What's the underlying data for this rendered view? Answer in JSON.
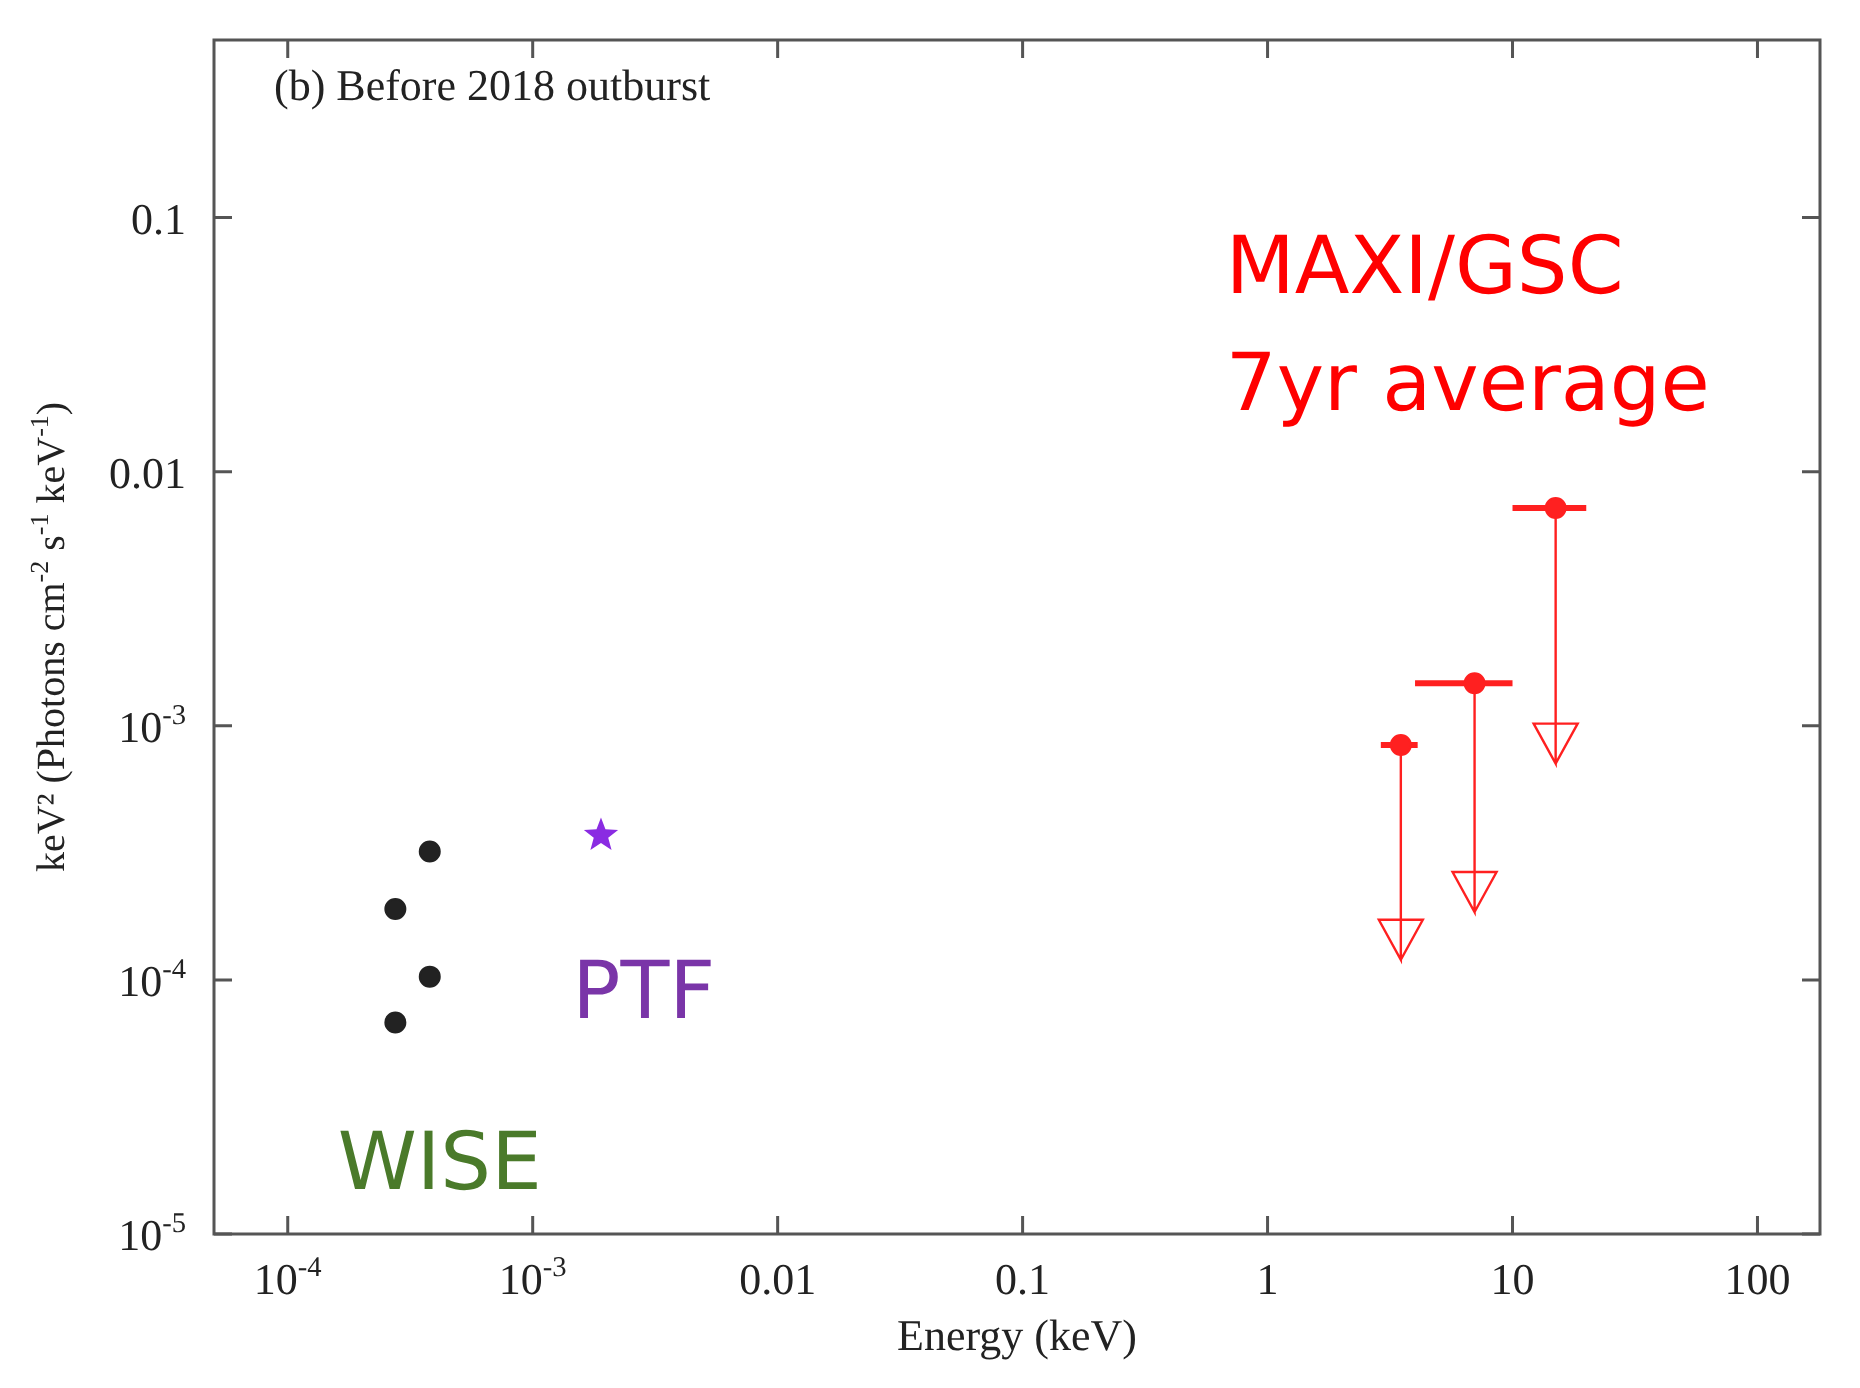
{
  "chart_data": {
    "type": "scatter",
    "title": "(b) Before 2018 outburst",
    "xlabel": "Energy (keV)",
    "ylabel": "keV² (Photons cm$^{-2}$ s$^{-1}$ keV$^{-1}$)",
    "log": "xy",
    "grid": false,
    "legend": false,
    "xlim": [
      5e-05,
      180
    ],
    "ylim": [
      1e-05,
      0.5
    ],
    "xticks": [
      {
        "value": 0.0001,
        "label": "10$^{-4}$"
      },
      {
        "value": 0.001,
        "label": "10$^{-3}$"
      },
      0.01,
      0.1,
      1,
      10,
      100
    ],
    "yticks": [
      {
        "value": 1e-05,
        "label": "10$^{-5}$"
      },
      {
        "value": 0.0001,
        "label": "10$^{-4}$"
      },
      {
        "value": 0.001,
        "label": "10$^{-3}$"
      },
      0.01,
      0.1
    ],
    "series": [
      {
        "name": "WISE",
        "color": "#222222",
        "marker": "circle",
        "x": [
          0.00038,
          0.000275,
          0.00038,
          0.000275
        ],
        "values": [
          0.00032,
          0.00019,
          0.000103,
          6.8e-05
        ]
      },
      {
        "name": "PTF",
        "color": "#8a2be2",
        "marker": "star",
        "x": [
          0.0019
        ],
        "values": [
          0.00037
        ]
      },
      {
        "name": "MAXI/GSC 7yr average",
        "color": "#ff2020",
        "marker": "circle",
        "x": [
          3.5,
          7,
          15
        ],
        "values": [
          0.00084,
          0.00147,
          0.0072
        ],
        "errors": [
          [
            0.00012,
            0.00084
          ],
          [
            0.000185,
            0.00147
          ],
          [
            0.00071,
            0.0072
          ]
        ],
        "xerrors": [
          [
            2.9,
            4.1
          ],
          [
            4,
            10
          ],
          [
            10,
            20
          ]
        ]
      }
    ]
  }
}
